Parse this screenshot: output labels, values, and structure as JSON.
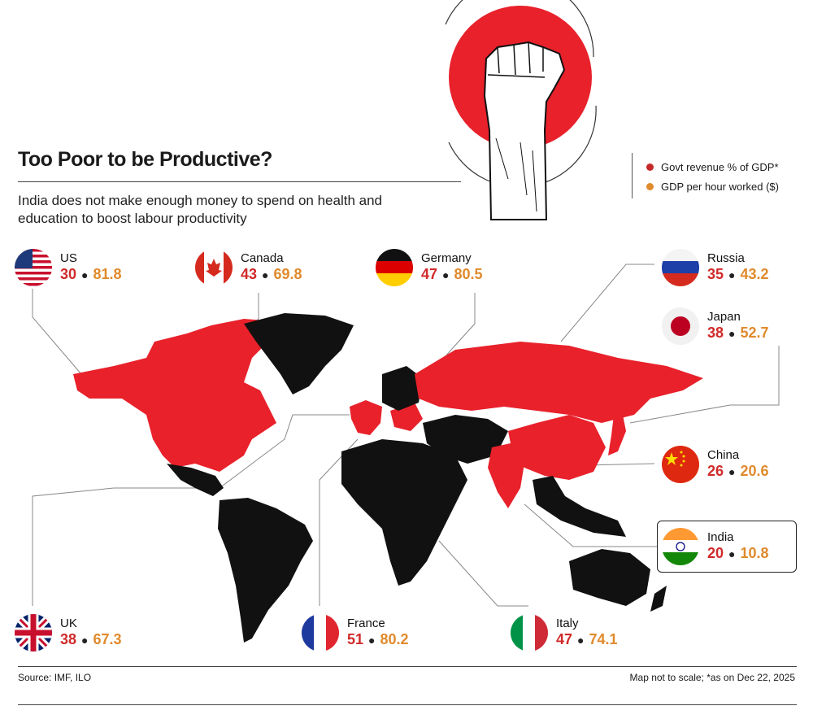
{
  "title": "Too Poor to be Productive?",
  "subtitle": "India does not make enough money to spend on health and education to boost labour productivity",
  "legend": [
    {
      "label": "Govt revenue % of GDP*",
      "color": "#c62828"
    },
    {
      "label": "GDP per hour worked ($)",
      "color": "#e08a2c"
    }
  ],
  "colors": {
    "highlight": "#e8212b",
    "land": "#111111",
    "accent_orange": "#e08a2c",
    "accent_red": "#d12a2a"
  },
  "countries": [
    {
      "name": "US",
      "revenue": "30",
      "gdp_hour": "81.8",
      "flag": "us-flag"
    },
    {
      "name": "Canada",
      "revenue": "43",
      "gdp_hour": "69.8",
      "flag": "canada-flag"
    },
    {
      "name": "Germany",
      "revenue": "47",
      "gdp_hour": "80.5",
      "flag": "germany-flag"
    },
    {
      "name": "Russia",
      "revenue": "35",
      "gdp_hour": "43.2",
      "flag": "russia-flag"
    },
    {
      "name": "Japan",
      "revenue": "38",
      "gdp_hour": "52.7",
      "flag": "japan-flag"
    },
    {
      "name": "China",
      "revenue": "26",
      "gdp_hour": "20.6",
      "flag": "china-flag"
    },
    {
      "name": "India",
      "revenue": "20",
      "gdp_hour": "10.8",
      "flag": "india-flag"
    },
    {
      "name": "UK",
      "revenue": "38",
      "gdp_hour": "67.3",
      "flag": "uk-flag"
    },
    {
      "name": "France",
      "revenue": "51",
      "gdp_hour": "80.2",
      "flag": "france-flag"
    },
    {
      "name": "Italy",
      "revenue": "47",
      "gdp_hour": "74.1",
      "flag": "italy-flag"
    }
  ],
  "source": "Source: IMF, ILO",
  "note": "Map not to scale; *as on Dec 22, 2025",
  "illustration": "raised-fist-icon"
}
